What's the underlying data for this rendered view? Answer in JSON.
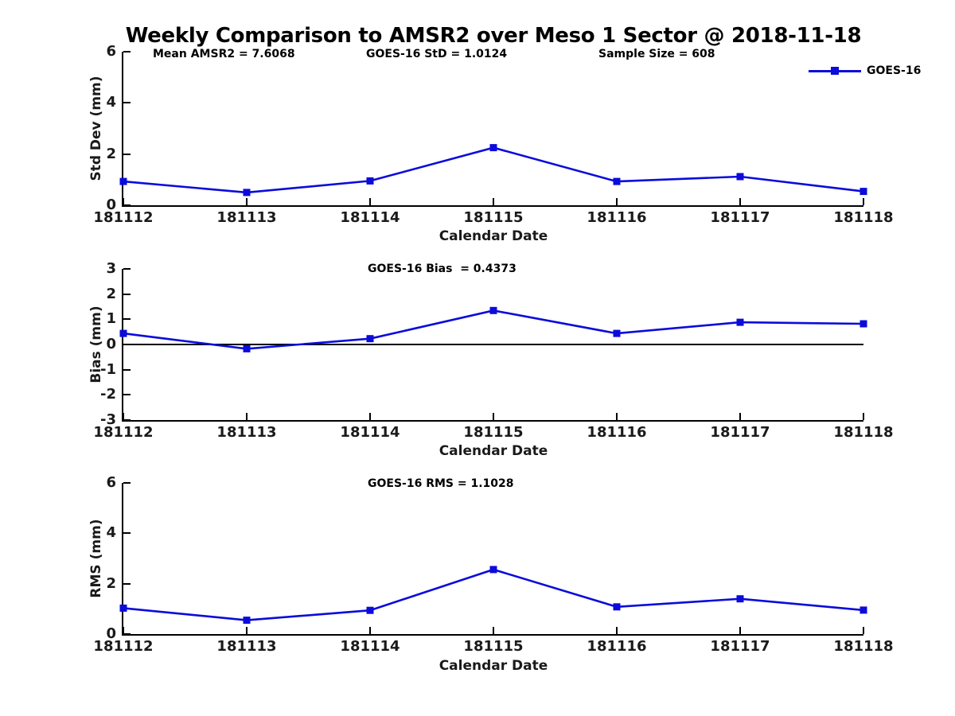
{
  "title": "Weekly Comparison to AMSR2 over Meso 1 Sector @ 2018-11-18",
  "legend": {
    "label": "GOES-16"
  },
  "colors": {
    "line": "#0b0bdb",
    "axis": "#000000",
    "background": "#ffffff"
  },
  "chart_data": [
    {
      "type": "line",
      "panel": "std_dev",
      "categories": [
        "181112",
        "181113",
        "181114",
        "181115",
        "181116",
        "181117",
        "181118"
      ],
      "series": [
        {
          "name": "GOES-16",
          "values": [
            0.93,
            0.5,
            0.95,
            2.25,
            0.93,
            1.12,
            0.54
          ]
        }
      ],
      "ylabel": "Std Dev (mm)",
      "xlabel": "Calendar Date",
      "ylim": [
        0,
        6
      ],
      "yticks": [
        0,
        2,
        4,
        6
      ],
      "grid": false,
      "zero_line": false,
      "legend_position": "top-right",
      "annotations": [
        "Mean AMSR2 = 7.6068",
        "GOES-16 StD = 1.0124",
        "Sample Size = 608"
      ]
    },
    {
      "type": "line",
      "panel": "bias",
      "categories": [
        "181112",
        "181113",
        "181114",
        "181115",
        "181116",
        "181117",
        "181118"
      ],
      "series": [
        {
          "name": "GOES-16",
          "values": [
            0.44,
            -0.17,
            0.23,
            1.35,
            0.44,
            0.88,
            0.82
          ]
        }
      ],
      "ylabel": "Bias (mm)",
      "xlabel": "Calendar Date",
      "ylim": [
        -3,
        3
      ],
      "yticks": [
        3,
        2,
        1,
        0,
        -1,
        -2,
        -3
      ],
      "grid": false,
      "zero_line": true,
      "annotations": [
        "GOES-16 Bias  = 0.4373"
      ]
    },
    {
      "type": "line",
      "panel": "rms",
      "categories": [
        "181112",
        "181113",
        "181114",
        "181115",
        "181116",
        "181117",
        "181118"
      ],
      "series": [
        {
          "name": "GOES-16",
          "values": [
            1.03,
            0.55,
            0.94,
            2.56,
            1.08,
            1.4,
            0.95
          ]
        }
      ],
      "ylabel": "RMS (mm)",
      "xlabel": "Calendar Date",
      "ylim": [
        0,
        6
      ],
      "yticks": [
        0,
        2,
        4,
        6
      ],
      "grid": false,
      "zero_line": false,
      "annotations": [
        "GOES-16 RMS = 1.1028"
      ]
    }
  ]
}
